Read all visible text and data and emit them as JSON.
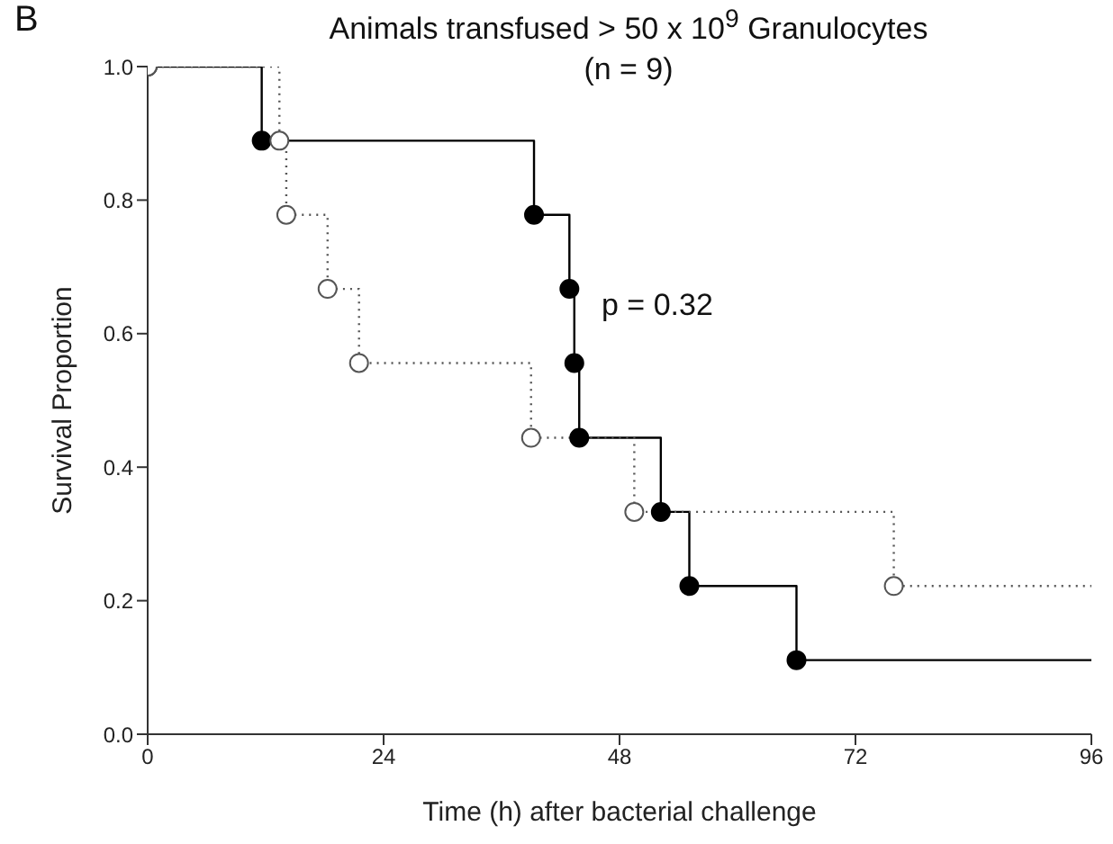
{
  "chart_data": {
    "type": "step",
    "title": "Animals transfused > 50 x 10$^{9}$ Granulocytes",
    "subtitle": "(n = 9)",
    "xlabel": "Time (h) after bacterial challenge",
    "ylabel": "Survival Proportion",
    "annotations": [
      "B",
      "p = 0.32"
    ],
    "series": [
      {
        "color": "#000000",
        "line_style": "solid",
        "x": [
          0,
          11.6,
          39.3,
          42.9,
          43.4,
          43.9,
          52.2,
          55.1,
          66.0,
          96
        ],
        "values": [
          1.0,
          0.889,
          0.778,
          0.667,
          0.556,
          0.444,
          0.333,
          0.222,
          0.111,
          0.111
        ]
      },
      {
        "color": "#555555",
        "line_style": "dotted",
        "x": [
          0,
          13.4,
          14.1,
          18.3,
          21.5,
          39.0,
          49.5,
          75.9,
          96
        ],
        "values": [
          1.0,
          0.889,
          0.778,
          0.667,
          0.556,
          0.444,
          0.333,
          0.222,
          0.222
        ]
      }
    ],
    "marker": "circle",
    "grid": false,
    "legend": false,
    "xlim": [
      0,
      96
    ],
    "xticks": [
      0,
      24,
      48,
      72,
      96
    ],
    "ylim": [
      0,
      1.0
    ],
    "yticks": [
      {
        "value": 0,
        "label": "0.0"
      },
      {
        "value": 0.2,
        "label": "0.2"
      },
      {
        "value": 0.4,
        "label": "0.4"
      },
      {
        "value": 0.6,
        "label": "0.6"
      },
      {
        "value": 0.8,
        "label": "0.8"
      },
      {
        "value": 1.0,
        "label": "1.0"
      }
    ]
  }
}
